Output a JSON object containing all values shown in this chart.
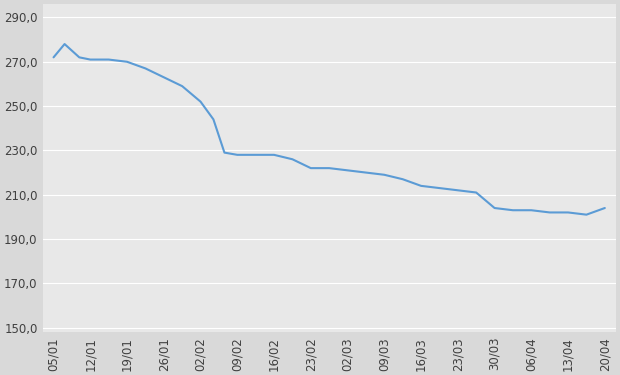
{
  "x_labels": [
    "05/01",
    "12/01",
    "19/01",
    "26/01",
    "02/02",
    "09/02",
    "16/02",
    "23/02",
    "02/03",
    "09/03",
    "16/03",
    "23/03",
    "30/03",
    "06/04",
    "13/04",
    "20/04"
  ],
  "detailed_x": [
    0,
    0.3,
    0.7,
    1.0,
    1.5,
    2.0,
    2.5,
    3.0,
    3.5,
    4.0,
    4.35,
    4.65,
    5.0,
    5.5,
    6.0,
    6.5,
    7.0,
    7.5,
    8.0,
    8.5,
    9.0,
    9.5,
    10.0,
    10.5,
    11.0,
    11.5,
    12.0,
    12.5,
    13.0,
    13.5,
    14.0,
    14.5,
    15.0
  ],
  "detailed_y": [
    272,
    278,
    272,
    271,
    271,
    270,
    267,
    263,
    259,
    252,
    244,
    229,
    228,
    228,
    228,
    226,
    222,
    222,
    221,
    220,
    219,
    217,
    214,
    213,
    212,
    211,
    204,
    203,
    203,
    202,
    202,
    201,
    204
  ],
  "line_color": "#5B9BD5",
  "line_width": 1.5,
  "background_color": "#D9D9D9",
  "plot_background": "#E8E8E8",
  "grid_color": "#FFFFFF",
  "yticks": [
    150,
    170,
    190,
    210,
    230,
    250,
    270,
    290
  ],
  "ylim": [
    148,
    296
  ],
  "tick_fontsize": 8.5
}
